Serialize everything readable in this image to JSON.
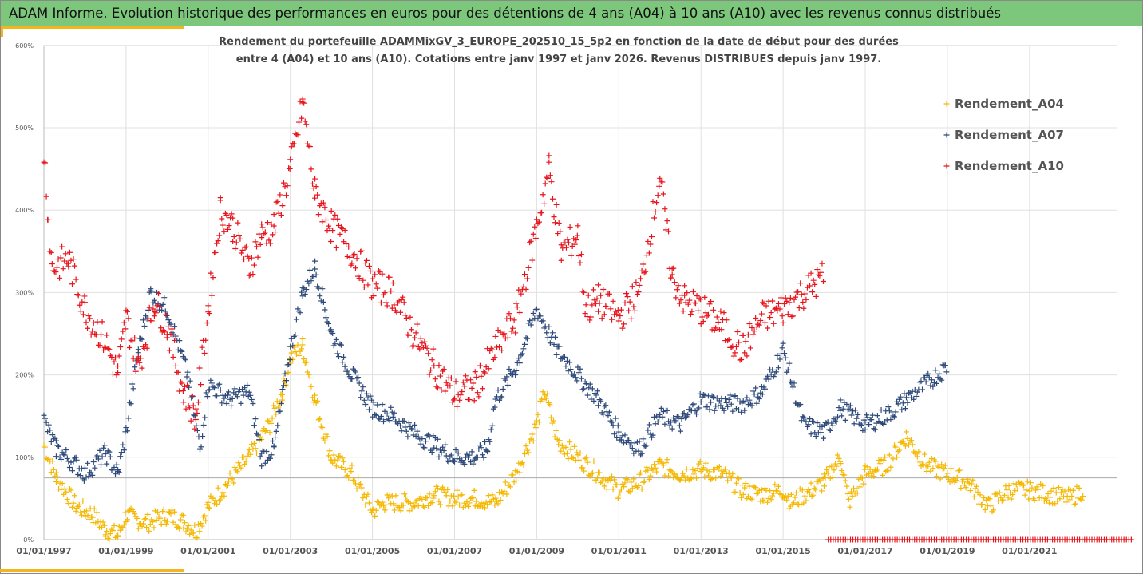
{
  "title": "ADAM Informe. Evolution historique des performances en euros pour des détentions de 4 ans (A04) à 10 ans (A10) avec les revenus connus distribués",
  "chart_data": {
    "type": "scatter",
    "title_line1": "Rendement du portefeuille ADAMMixGV_3_EUROPE_202510_15_5p2  en fonction de la date de début pour des durées",
    "title_line2": "entre 4 (A04) et 10 ans (A10). Cotations entre janv 1997 et janv 2026. Revenus DISTRIBUES depuis janv 1997.",
    "xlabel": "",
    "ylabel": "",
    "xlim": [
      1997,
      2023.5
    ],
    "ylim": [
      0,
      600
    ],
    "yticks": [
      "0%",
      "100%",
      "200%",
      "300%",
      "400%",
      "500%",
      "600%"
    ],
    "xticks": [
      "01/01/1997",
      "01/01/1999",
      "01/01/2001",
      "01/01/2003",
      "01/01/2005",
      "01/01/2007",
      "01/01/2009",
      "01/01/2011",
      "01/01/2013",
      "01/01/2015",
      "01/01/2017",
      "01/01/2019",
      "01/01/2021"
    ],
    "reference_line": 75,
    "legend_position": "right",
    "series": [
      {
        "name": "Rendement_A04",
        "color": "#f5b800",
        "points": [
          [
            1997,
            115
          ],
          [
            1997.3,
            75
          ],
          [
            1997.8,
            40
          ],
          [
            1998.2,
            30
          ],
          [
            1998.5,
            12
          ],
          [
            1998.8,
            5
          ],
          [
            1999,
            30
          ],
          [
            1999.5,
            20
          ],
          [
            2000,
            30
          ],
          [
            2000.4,
            22
          ],
          [
            2000.7,
            10
          ],
          [
            2001,
            40
          ],
          [
            2001.5,
            70
          ],
          [
            2002,
            100
          ],
          [
            2002.5,
            140
          ],
          [
            2002.8,
            180
          ],
          [
            2003,
            220
          ],
          [
            2003.3,
            235
          ],
          [
            2003.6,
            170
          ],
          [
            2004,
            100
          ],
          [
            2004.5,
            80
          ],
          [
            2005,
            35
          ],
          [
            2005.3,
            45
          ],
          [
            2006,
            45
          ],
          [
            2006.5,
            55
          ],
          [
            2007,
            50
          ],
          [
            2007.5,
            50
          ],
          [
            2008,
            45
          ],
          [
            2008.5,
            80
          ],
          [
            2009,
            140
          ],
          [
            2009.2,
            180
          ],
          [
            2009.5,
            120
          ],
          [
            2010,
            100
          ],
          [
            2010.5,
            80
          ],
          [
            2011,
            60
          ],
          [
            2011.5,
            70
          ],
          [
            2012,
            90
          ],
          [
            2012.5,
            80
          ],
          [
            2013,
            85
          ],
          [
            2013.5,
            80
          ],
          [
            2014,
            60
          ],
          [
            2014.5,
            55
          ],
          [
            2015,
            60
          ],
          [
            2015.2,
            45
          ],
          [
            2015.7,
            60
          ],
          [
            2016,
            70
          ],
          [
            2016.4,
            100
          ],
          [
            2016.6,
            45
          ],
          [
            2017,
            80
          ],
          [
            2017.5,
            90
          ],
          [
            2018,
            125
          ],
          [
            2018.5,
            90
          ],
          [
            2019,
            80
          ],
          [
            2019.5,
            70
          ],
          [
            2020,
            40
          ],
          [
            2020.5,
            60
          ],
          [
            2021,
            60
          ],
          [
            2021.5,
            55
          ],
          [
            2022,
            50
          ],
          [
            2022.3,
            60
          ]
        ]
      },
      {
        "name": "Rendement_A07",
        "color": "#2e4a7a",
        "points": [
          [
            1997,
            145
          ],
          [
            1997.3,
            110
          ],
          [
            1997.8,
            90
          ],
          [
            1998,
            80
          ],
          [
            1998.5,
            105
          ],
          [
            1998.8,
            80
          ],
          [
            1999,
            130
          ],
          [
            1999.3,
            230
          ],
          [
            1999.6,
            300
          ],
          [
            2000,
            280
          ],
          [
            2000.5,
            200
          ],
          [
            2000.8,
            110
          ],
          [
            2001,
            190
          ],
          [
            2001.5,
            170
          ],
          [
            2002,
            180
          ],
          [
            2002.3,
            100
          ],
          [
            2002.6,
            110
          ],
          [
            2003,
            230
          ],
          [
            2003.3,
            300
          ],
          [
            2003.6,
            330
          ],
          [
            2004,
            250
          ],
          [
            2004.5,
            200
          ],
          [
            2005,
            160
          ],
          [
            2005.5,
            150
          ],
          [
            2006,
            130
          ],
          [
            2006.5,
            115
          ],
          [
            2007,
            100
          ],
          [
            2007.5,
            100
          ],
          [
            2007.8,
            110
          ],
          [
            2008,
            170
          ],
          [
            2008.5,
            210
          ],
          [
            2009,
            280
          ],
          [
            2009.5,
            230
          ],
          [
            2010,
            200
          ],
          [
            2010.5,
            170
          ],
          [
            2011,
            130
          ],
          [
            2011.5,
            110
          ],
          [
            2012,
            150
          ],
          [
            2012.5,
            140
          ],
          [
            2013,
            170
          ],
          [
            2013.5,
            165
          ],
          [
            2014,
            165
          ],
          [
            2014.5,
            180
          ],
          [
            2015,
            230
          ],
          [
            2015.5,
            140
          ],
          [
            2016,
            130
          ],
          [
            2016.4,
            160
          ],
          [
            2017,
            140
          ],
          [
            2017.5,
            150
          ],
          [
            2018,
            170
          ],
          [
            2018.5,
            190
          ],
          [
            2019,
            210
          ]
        ]
      },
      {
        "name": "Rendement_A10",
        "color": "#e8141c",
        "points": [
          [
            1997,
            470
          ],
          [
            1997.2,
            330
          ],
          [
            1997.6,
            340
          ],
          [
            1998,
            280
          ],
          [
            1998.5,
            240
          ],
          [
            1998.8,
            200
          ],
          [
            1999,
            270
          ],
          [
            1999.3,
            210
          ],
          [
            1999.7,
            290
          ],
          [
            2000,
            260
          ],
          [
            2000.4,
            180
          ],
          [
            2000.7,
            150
          ],
          [
            2001,
            280
          ],
          [
            2001.3,
            400
          ],
          [
            2001.6,
            380
          ],
          [
            2002,
            330
          ],
          [
            2002.3,
            370
          ],
          [
            2002.6,
            380
          ],
          [
            2003,
            450
          ],
          [
            2003.3,
            530
          ],
          [
            2003.6,
            420
          ],
          [
            2004,
            380
          ],
          [
            2004.5,
            350
          ],
          [
            2005,
            310
          ],
          [
            2005.5,
            300
          ],
          [
            2006,
            250
          ],
          [
            2006.5,
            210
          ],
          [
            2007,
            175
          ],
          [
            2007.5,
            185
          ],
          [
            2008,
            230
          ],
          [
            2008.5,
            270
          ],
          [
            2009,
            380
          ],
          [
            2009.3,
            450
          ],
          [
            2009.6,
            350
          ],
          [
            2010,
            370
          ],
          [
            2010.2,
            280
          ],
          [
            2010.5,
            290
          ],
          [
            2011,
            270
          ],
          [
            2011.5,
            300
          ],
          [
            2012,
            440
          ],
          [
            2012.3,
            320
          ],
          [
            2012.6,
            290
          ],
          [
            2013,
            280
          ],
          [
            2013.5,
            260
          ],
          [
            2014,
            230
          ],
          [
            2014.5,
            270
          ],
          [
            2015,
            280
          ],
          [
            2015.5,
            300
          ],
          [
            2016,
            320
          ]
        ],
        "zero_points": [
          [
            2016.1,
            0
          ],
          [
            2023.5,
            0
          ]
        ]
      }
    ]
  }
}
